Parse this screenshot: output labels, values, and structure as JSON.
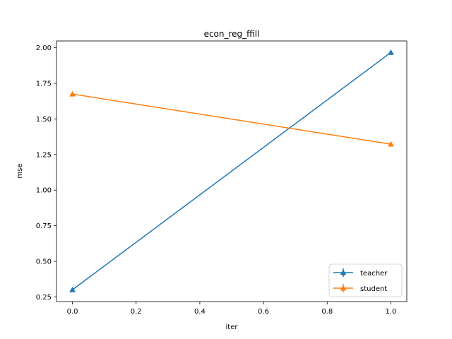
{
  "chart_data": {
    "type": "line",
    "title": "econ_reg_ffill",
    "xlabel": "iter",
    "ylabel": "mse",
    "x": [
      0.0,
      1.0
    ],
    "xlim": [
      -0.05,
      1.05
    ],
    "ylim": [
      0.217,
      2.048
    ],
    "xticks": [
      0.0,
      0.2,
      0.4,
      0.6,
      0.8,
      1.0
    ],
    "xtick_labels": [
      "0.0",
      "0.2",
      "0.4",
      "0.6",
      "0.8",
      "1.0"
    ],
    "yticks": [
      0.25,
      0.5,
      0.75,
      1.0,
      1.25,
      1.5,
      1.75,
      2.0
    ],
    "ytick_labels": [
      "0.25",
      "0.50",
      "0.75",
      "1.00",
      "1.25",
      "1.50",
      "1.75",
      "2.00"
    ],
    "grid": false,
    "legend_position": "lower-right",
    "marker": "triangle-up",
    "series": [
      {
        "name": "teacher",
        "color": "#1f77b4",
        "values": [
          0.3,
          1.967
        ]
      },
      {
        "name": "student",
        "color": "#ff7f0e",
        "values": [
          1.675,
          1.323
        ]
      }
    ]
  }
}
